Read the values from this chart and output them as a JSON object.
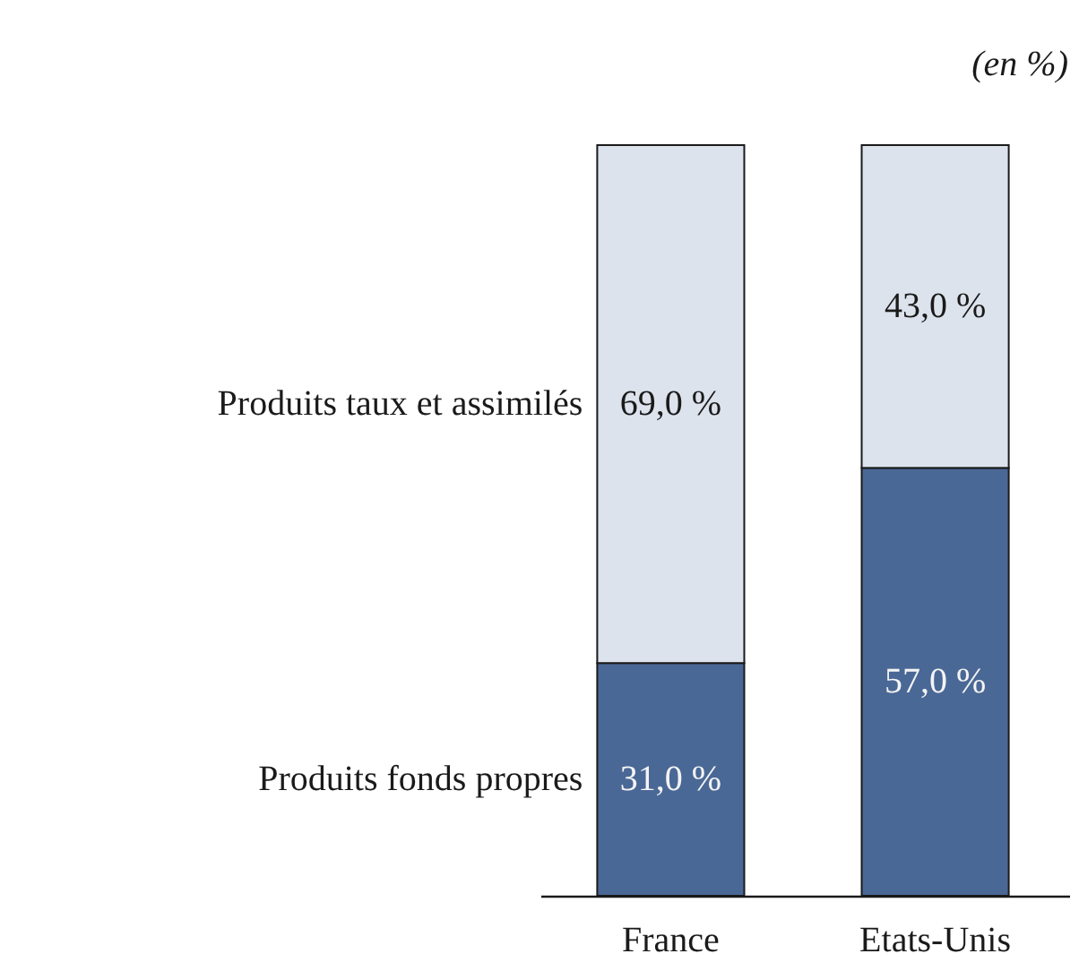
{
  "chart_data": {
    "type": "bar",
    "stacked": true,
    "categories": [
      "France",
      "Etats-Unis"
    ],
    "series": [
      {
        "name": "Produits fonds propres",
        "color": "#4a6896",
        "values": [
          31,
          57
        ],
        "value_labels": [
          "31,0 %",
          "57,0 %"
        ]
      },
      {
        "name": "Produits taux et assimilés",
        "color": "#dde3ed",
        "values": [
          69,
          43
        ],
        "value_labels": [
          "69,0 %",
          "43,0 %"
        ]
      }
    ],
    "annotations": [
      "(en %)"
    ]
  }
}
